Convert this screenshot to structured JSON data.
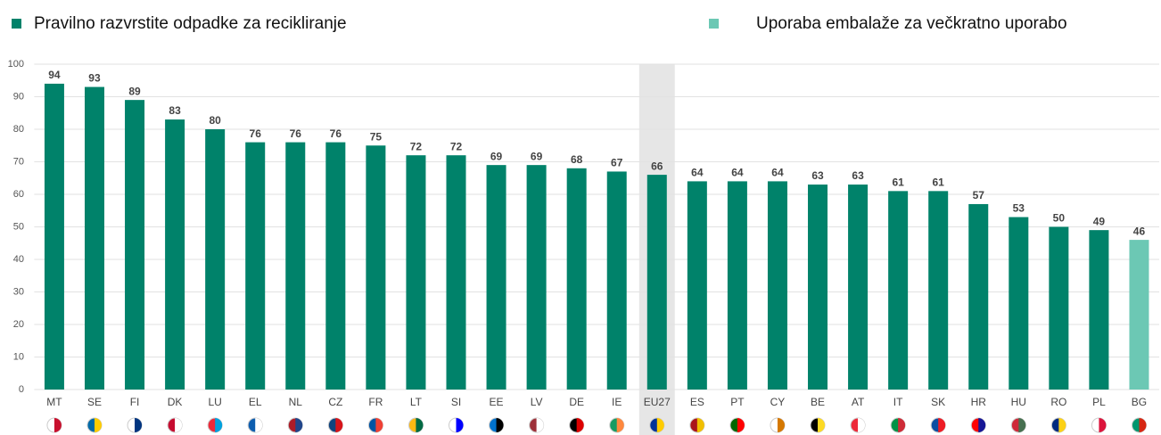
{
  "chart_data": {
    "type": "bar",
    "categories": [
      "MT",
      "SE",
      "FI",
      "DK",
      "LU",
      "EL",
      "NL",
      "CZ",
      "FR",
      "LT",
      "SI",
      "EE",
      "LV",
      "DE",
      "IE",
      "EU27",
      "ES",
      "PT",
      "CY",
      "BE",
      "AT",
      "IT",
      "SK",
      "HR",
      "HU",
      "RO",
      "PL",
      "BG"
    ],
    "series": [
      {
        "name": "Pravilno razvrstite odpadke za recikliranje",
        "color": "#00826a",
        "values": [
          94,
          93,
          89,
          83,
          80,
          76,
          76,
          76,
          75,
          72,
          72,
          69,
          69,
          68,
          67,
          66,
          64,
          64,
          64,
          63,
          63,
          61,
          61,
          57,
          53,
          50,
          49,
          null
        ]
      },
      {
        "name": "Uporaba embalaže za večkratno uporabo",
        "color": "#6cc8b4",
        "values": [
          null,
          null,
          null,
          null,
          null,
          null,
          null,
          null,
          null,
          null,
          null,
          null,
          null,
          null,
          null,
          null,
          null,
          null,
          null,
          null,
          null,
          null,
          null,
          null,
          null,
          null,
          null,
          46
        ]
      }
    ],
    "ylim": [
      0,
      100
    ],
    "yticks": [
      0,
      10,
      20,
      30,
      40,
      50,
      60,
      70,
      80,
      90,
      100
    ],
    "grid": true,
    "highlight": "EU27"
  }
}
